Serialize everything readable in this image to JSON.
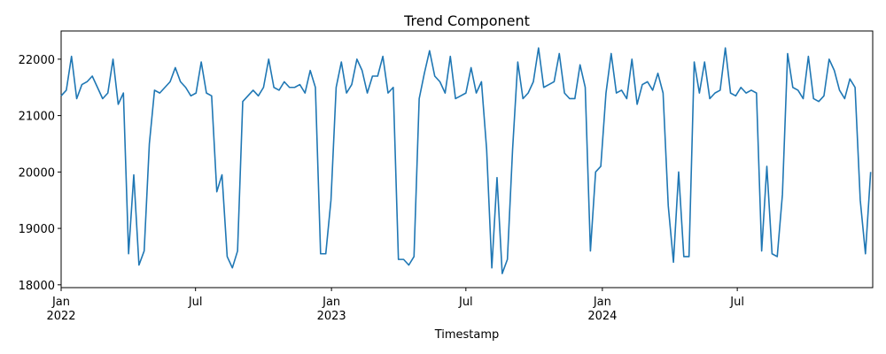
{
  "chart_data": {
    "type": "line",
    "title": "Trend Component",
    "x_label": "Timestamp",
    "color": "#1f77b4",
    "x": [
      0,
      1,
      2,
      3,
      4,
      5,
      6,
      7,
      8,
      9,
      10,
      11,
      12,
      13,
      14,
      15,
      16,
      17,
      18,
      19,
      20,
      21,
      22,
      23,
      24,
      25,
      26,
      27,
      28,
      29,
      30,
      31,
      32,
      33,
      34,
      35,
      36,
      37,
      38,
      39,
      40,
      41,
      42,
      43,
      44,
      45,
      46,
      47,
      48,
      49,
      50,
      51,
      52,
      53,
      54,
      55,
      56,
      57,
      58,
      59,
      60,
      61,
      62,
      63,
      64,
      65,
      66,
      67,
      68,
      69,
      70,
      71,
      72,
      73,
      74,
      75,
      76,
      77,
      78,
      79,
      80,
      81,
      82,
      83,
      84,
      85,
      86,
      87,
      88,
      89,
      90,
      91,
      92,
      93,
      94,
      95,
      96,
      97,
      98,
      99,
      100,
      101,
      102,
      103,
      104,
      105,
      106,
      107,
      108,
      109,
      110,
      111,
      112,
      113,
      114,
      115,
      116,
      117,
      118,
      119,
      120,
      121,
      122,
      123,
      124,
      125,
      126,
      127,
      128,
      129,
      130,
      131,
      132,
      133,
      134,
      135,
      136,
      137,
      138,
      139,
      140,
      141,
      142,
      143,
      144,
      145,
      146,
      147,
      148,
      149,
      150,
      151,
      152,
      153,
      154,
      155,
      156
    ],
    "values": [
      21350,
      21450,
      22050,
      21300,
      21550,
      21600,
      21700,
      21500,
      21300,
      21400,
      22000,
      21200,
      21400,
      18550,
      19950,
      18350,
      18600,
      20500,
      21450,
      21400,
      21500,
      21600,
      21850,
      21600,
      21500,
      21350,
      21400,
      21950,
      21400,
      21350,
      19650,
      19950,
      18500,
      18300,
      18600,
      21250,
      21350,
      21450,
      21350,
      21500,
      22000,
      21500,
      21450,
      21600,
      21500,
      21500,
      21550,
      21400,
      21800,
      21500,
      18550,
      18550,
      19500,
      21500,
      21950,
      21400,
      21550,
      22000,
      21800,
      21400,
      21700,
      21700,
      22050,
      21400,
      21500,
      18450,
      18450,
      18350,
      18500,
      21300,
      21750,
      22150,
      21700,
      21600,
      21400,
      22050,
      21300,
      21350,
      21400,
      21850,
      21400,
      21600,
      20400,
      18300,
      19900,
      18200,
      18450,
      20400,
      21950,
      21300,
      21400,
      21600,
      22200,
      21500,
      21550,
      21600,
      22100,
      21400,
      21300,
      21300,
      21900,
      21500,
      18600,
      20000,
      20100,
      21400,
      22100,
      21400,
      21450,
      21300,
      22000,
      21200,
      21550,
      21600,
      21450,
      21750,
      21400,
      19400,
      18400,
      20000,
      18500,
      18500,
      21950,
      21400,
      21950,
      21300,
      21400,
      21450,
      22200,
      21400,
      21350,
      21500,
      21400,
      21450,
      21400,
      18600,
      20100,
      18550,
      18500,
      19600,
      22100,
      21500,
      21450,
      21300,
      22050,
      21300,
      21250,
      21350,
      22000,
      21800,
      21450,
      21300,
      21650,
      21500,
      19500,
      18550,
      20000
    ],
    "xlim": [
      0,
      156.4
    ],
    "xticks": [
      {
        "value": 0,
        "label": "Jan 2022"
      },
      {
        "value": 25.9,
        "label": "Jul"
      },
      {
        "value": 52.1,
        "label": "Jan 2023"
      },
      {
        "value": 78,
        "label": "Jul"
      },
      {
        "value": 104.3,
        "label": "Jan 2024"
      },
      {
        "value": 130.3,
        "label": "Jul"
      }
    ],
    "ylim": [
      17950,
      22500
    ],
    "yticks": [
      18000,
      19000,
      20000,
      21000,
      22000
    ]
  }
}
